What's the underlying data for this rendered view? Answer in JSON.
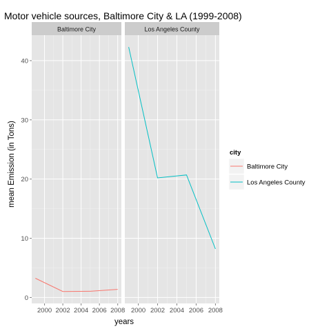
{
  "chart_data": {
    "type": "line",
    "title": "Motor vehicle sources, Baltimore City & LA (1999-2008)",
    "xlabel": "years",
    "ylabel": "mean Emission (in Tons)",
    "facets": [
      "Baltimore City",
      "Los Angeles County"
    ],
    "x": [
      1999,
      2002,
      2005,
      2008
    ],
    "x_ticks": [
      2000,
      2002,
      2004,
      2006,
      2008
    ],
    "xlim": [
      1998.6,
      2008.4
    ],
    "y_ticks": [
      0,
      10,
      20,
      30,
      40
    ],
    "ylim": [
      -1.0,
      44.3
    ],
    "grid": true,
    "legend": {
      "title": "city",
      "position": "right",
      "entries": [
        "Baltimore City",
        "Los Angeles County"
      ]
    },
    "series": [
      {
        "name": "Baltimore City",
        "facet": "Baltimore City",
        "color": "#F8766D",
        "values": [
          3.25,
          1.02,
          1.05,
          1.37
        ]
      },
      {
        "name": "Los Angeles County",
        "facet": "Los Angeles County",
        "color": "#00BFC4",
        "values": [
          42.3,
          20.2,
          20.7,
          8.2
        ]
      }
    ]
  },
  "colors": {
    "panel_bg": "#E5E5E5",
    "strip_bg": "#CCCCCC",
    "grid_major": "#FFFFFF",
    "grid_minor": "#F2F2F2",
    "legend_key_bg": "#F2F2F2"
  }
}
